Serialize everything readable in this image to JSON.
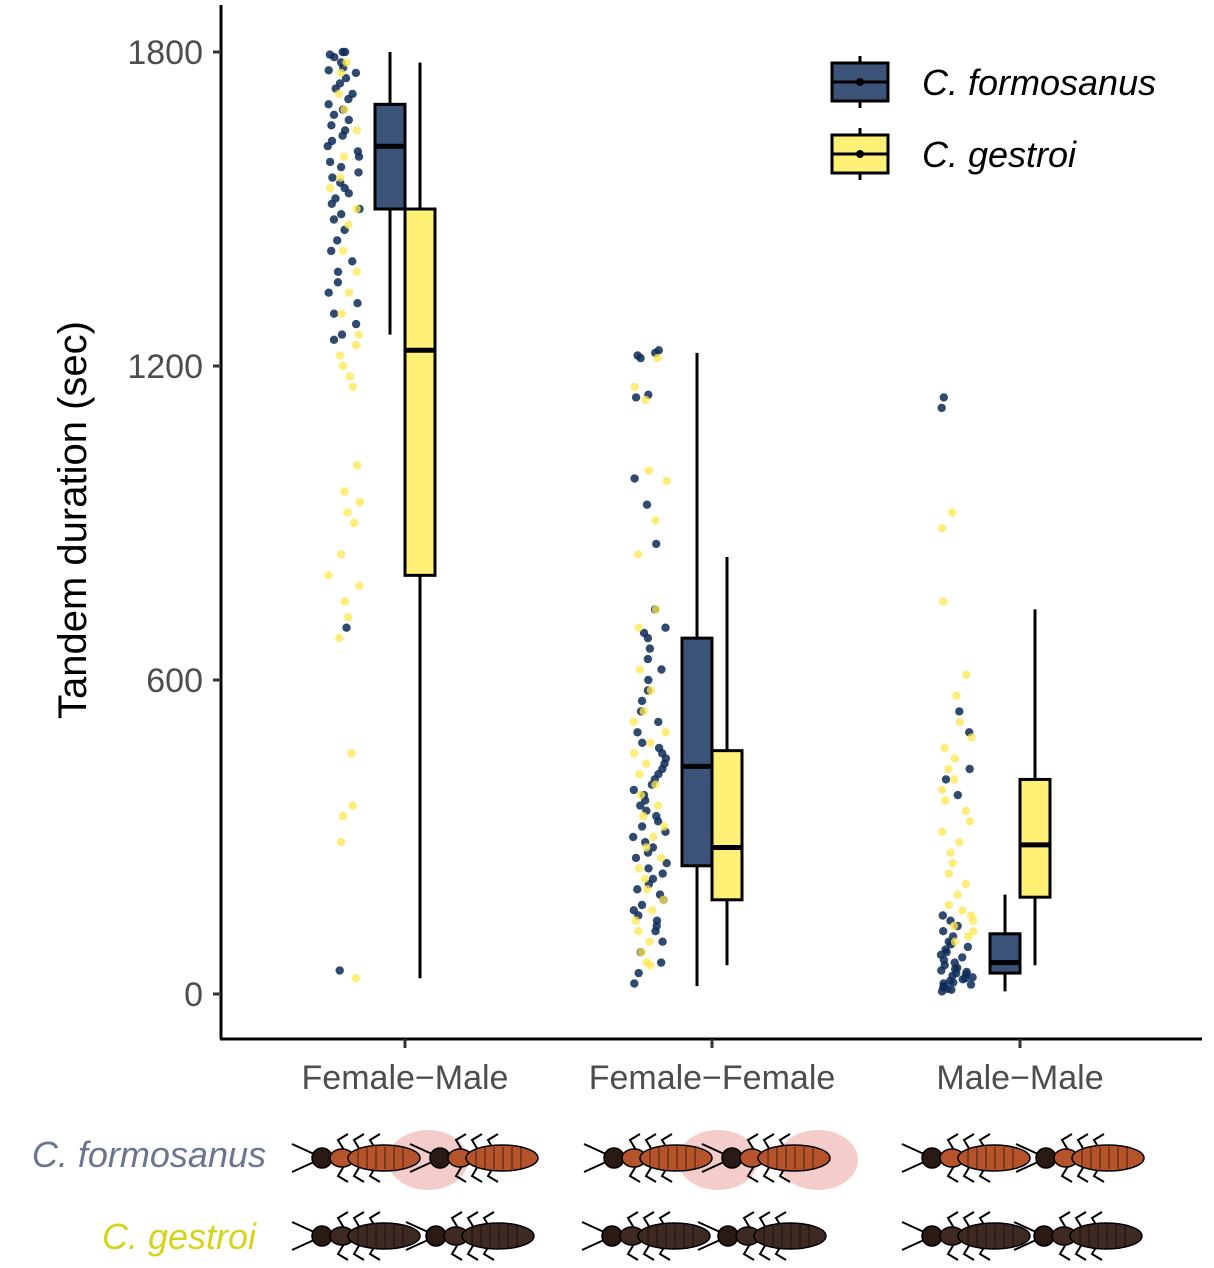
{
  "chart_data": {
    "type": "boxplot",
    "ylabel": "Tandem duration (sec)",
    "ylim": [
      -80,
      1860
    ],
    "yticks": [
      0,
      600,
      1200,
      1800
    ],
    "categories": [
      "Female−Male",
      "Female−Female",
      "Male−Male"
    ],
    "legend_position": "top-right",
    "grid": false,
    "series": [
      {
        "name": "C. formosanus",
        "color": "#3b5378",
        "point_color": "#0d2b57",
        "boxes": [
          {
            "category": "Female−Male",
            "lower_whisker": 1260,
            "q1": 1500,
            "median": 1620,
            "q3": 1700,
            "upper_whisker": 1800
          },
          {
            "category": "Female−Female",
            "lower_whisker": 15,
            "q1": 245,
            "median": 435,
            "q3": 680,
            "upper_whisker": 1225
          },
          {
            "category": "Male−Male",
            "lower_whisker": 5,
            "q1": 40,
            "median": 60,
            "q3": 115,
            "upper_whisker": 190
          }
        ],
        "points": [
          [
            0,
            [
              1800,
              1800,
              1795,
              1790,
              1780,
              1770,
              1765,
              1760,
              1750,
              1740,
              1730,
              1720,
              1710,
              1700,
              1690,
              1680,
              1670,
              1660,
              1650,
              1640,
              1630,
              1620,
              1610,
              1600,
              1590,
              1580,
              1570,
              1560,
              1550,
              1540,
              1530,
              1520,
              1510,
              1500,
              1490,
              1480,
              1460,
              1440,
              1420,
              1400,
              1380,
              1360,
              1340,
              1320,
              1300,
              1280,
              1260,
              1250,
              700,
              45
            ]
          ],
          [
            1,
            [
              1230,
              1225,
              1220,
              1215,
              1145,
              1140,
              985,
              935,
              860,
              735,
              700,
              690,
              680,
              660,
              640,
              620,
              600,
              580,
              560,
              540,
              520,
              500,
              480,
              470,
              460,
              450,
              440,
              430,
              420,
              410,
              400,
              390,
              380,
              370,
              360,
              350,
              340,
              330,
              320,
              310,
              300,
              290,
              280,
              270,
              260,
              250,
              240,
              230,
              220,
              210,
              200,
              190,
              180,
              170,
              160,
              150,
              140,
              130,
              120,
              100,
              80,
              60,
              40,
              20
            ]
          ],
          [
            2,
            [
              1140,
              1120,
              540,
              500,
              430,
              410,
              380,
              150,
              140,
              130,
              120,
              110,
              100,
              95,
              90,
              85,
              80,
              75,
              70,
              65,
              60,
              55,
              50,
              48,
              45,
              42,
              40,
              38,
              35,
              32,
              30,
              28,
              25,
              22,
              20,
              18,
              15,
              12,
              10,
              8,
              5
            ]
          ]
        ]
      },
      {
        "name": "C. gestroi",
        "color": "#fff176",
        "point_color": "#fde74c",
        "boxes": [
          {
            "category": "Female−Male",
            "lower_whisker": 30,
            "q1": 800,
            "median": 1230,
            "q3": 1500,
            "upper_whisker": 1780
          },
          {
            "category": "Female−Female",
            "lower_whisker": 55,
            "q1": 180,
            "median": 280,
            "q3": 465,
            "upper_whisker": 835
          },
          {
            "category": "Male−Male",
            "lower_whisker": 55,
            "q1": 185,
            "median": 285,
            "q3": 410,
            "upper_whisker": 735
          }
        ],
        "points": [
          [
            0,
            [
              1780,
              1760,
              1720,
              1690,
              1650,
              1600,
              1560,
              1540,
              1500,
              1470,
              1420,
              1380,
              1340,
              1300,
              1260,
              1240,
              1220,
              1200,
              1180,
              1160,
              1010,
              960,
              940,
              920,
              900,
              840,
              800,
              780,
              750,
              720,
              680,
              460,
              360,
              340,
              290,
              30
            ]
          ],
          [
            1,
            [
              1215,
              1160,
              1135,
              1000,
              980,
              905,
              840,
              735,
              700,
              620,
              580,
              540,
              520,
              500,
              480,
              460,
              440,
              420,
              400,
              380,
              360,
              340,
              320,
              300,
              280,
              260,
              240,
              220,
              200,
              180,
              160,
              140,
              120,
              100,
              80,
              60,
              55
            ]
          ],
          [
            2,
            [
              920,
              890,
              750,
              610,
              570,
              520,
              490,
              470,
              450,
              430,
              410,
              390,
              370,
              350,
              330,
              310,
              290,
              270,
              250,
              230,
              210,
              190,
              170,
              160,
              150,
              140,
              130,
              120,
              110,
              100
            ]
          ]
        ]
      }
    ]
  },
  "side_labels": {
    "formosanus": "C. formosanus",
    "gestroi": "C. gestroi",
    "formosanus_color": "#6b7490",
    "gestroi_color": "#d4d41c"
  },
  "termite_icons": {
    "formosanus_body": "#b5542a",
    "gestroi_body": "#3e2a22",
    "pheromone_glow": "#f2c3c0"
  }
}
